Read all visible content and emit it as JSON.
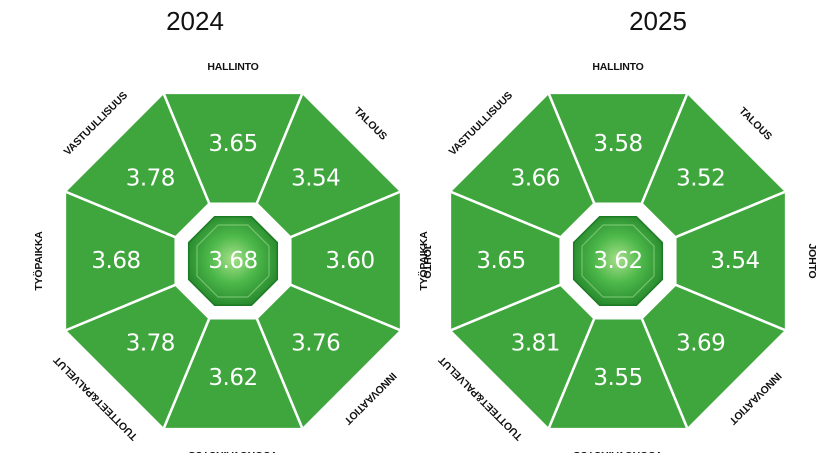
{
  "colors": {
    "segment": "#3ea63c",
    "outline": "#ffffff",
    "center": "#2f9b31"
  },
  "categories": [
    "HALLINTO",
    "TALOUS",
    "JOHTO",
    "INNOVAATIOT",
    "VUOROVAIKUTUS",
    "TUOTTEET&PALVELUT",
    "TYÖPAIKKA",
    "VASTUULLISUUS"
  ],
  "charts": [
    {
      "year": "2024",
      "center": "3.68",
      "values": [
        "3.65",
        "3.54",
        "3.60",
        "3.76",
        "3.62",
        "3.78",
        "3.68",
        "3.78"
      ]
    },
    {
      "year": "2025",
      "center": "3.62",
      "values": [
        "3.58",
        "3.52",
        "3.54",
        "3.69",
        "3.55",
        "3.81",
        "3.65",
        "3.66"
      ]
    }
  ]
}
